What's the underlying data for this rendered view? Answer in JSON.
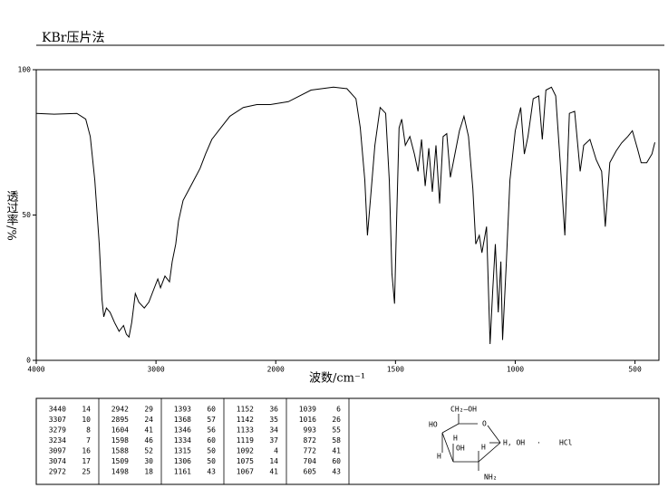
{
  "chart_data": {
    "type": "line",
    "title": "KBr压片法",
    "x_label": "波数/cm⁻¹",
    "y_label": "透过率/%",
    "color": "#000000",
    "xlim": [
      4000,
      400
    ],
    "xticks": [
      4000,
      3000,
      2000,
      1500,
      1000,
      500
    ],
    "ylim": [
      0,
      100
    ],
    "yticks": [
      0,
      50,
      100
    ],
    "x": [
      4000,
      3850,
      3662,
      3587,
      3549,
      3511,
      3474,
      3451,
      3436,
      3414,
      3383,
      3346,
      3308,
      3271,
      3248,
      3226,
      3203,
      3173,
      3143,
      3098,
      3060,
      3023,
      2985,
      2962,
      2925,
      2887,
      2865,
      2835,
      2812,
      2774,
      2722,
      2684,
      2632,
      2586,
      2534,
      2459,
      2383,
      2271,
      2158,
      2045,
      1947,
      1853,
      1759,
      1703,
      1665,
      1647,
      1628,
      1617,
      1602,
      1586,
      1564,
      1541,
      1526,
      1515,
      1504,
      1496,
      1485,
      1474,
      1459,
      1440,
      1421,
      1406,
      1391,
      1376,
      1361,
      1346,
      1331,
      1316,
      1301,
      1286,
      1271,
      1252,
      1233,
      1214,
      1195,
      1177,
      1165,
      1150,
      1139,
      1120,
      1105,
      1094,
      1083,
      1071,
      1060,
      1053,
      1037,
      1022,
      1000,
      977,
      962,
      947,
      925,
      902,
      887,
      872,
      849,
      831,
      812,
      793,
      774,
      752,
      729,
      714,
      688,
      662,
      639,
      624,
      605,
      579,
      556,
      530,
      511,
      489,
      474,
      451,
      429,
      417
    ],
    "values": [
      85,
      84.7,
      85,
      83,
      77,
      62,
      40,
      21,
      15,
      18,
      16.5,
      13,
      10,
      12,
      9,
      8,
      13,
      23,
      20,
      18,
      20,
      24,
      28,
      25,
      29,
      27,
      34,
      40,
      48,
      55,
      59,
      62,
      66,
      71,
      76,
      80,
      84,
      87,
      88,
      88,
      89,
      93,
      94,
      93.5,
      90,
      80,
      62,
      43,
      58,
      74,
      87,
      85,
      62,
      30,
      19.5,
      46,
      80,
      83,
      74,
      77,
      71,
      65,
      76,
      60,
      73,
      58,
      74,
      54,
      77,
      78,
      63,
      71,
      79,
      84,
      77,
      59,
      40,
      43,
      37,
      46,
      5.6,
      24,
      40,
      16.5,
      34,
      7,
      34,
      62,
      79,
      87,
      71,
      77,
      90,
      91,
      76,
      93,
      94,
      91,
      68,
      43,
      85,
      85.7,
      65,
      74,
      76,
      69,
      65,
      46,
      68,
      72,
      74.8,
      77,
      79,
      72.6,
      68,
      68,
      71,
      75
    ]
  },
  "peak_table": {
    "columns": [
      [
        [
          3440,
          14
        ],
        [
          3307,
          10
        ],
        [
          3279,
          8
        ],
        [
          3234,
          7
        ],
        [
          3097,
          16
        ],
        [
          3074,
          17
        ],
        [
          2972,
          25
        ]
      ],
      [
        [
          2942,
          29
        ],
        [
          2895,
          24
        ],
        [
          1604,
          41
        ],
        [
          1598,
          46
        ],
        [
          1588,
          52
        ],
        [
          1509,
          30
        ],
        [
          1498,
          18
        ]
      ],
      [
        [
          1393,
          60
        ],
        [
          1368,
          57
        ],
        [
          1346,
          56
        ],
        [
          1334,
          60
        ],
        [
          1315,
          50
        ],
        [
          1306,
          50
        ],
        [
          1161,
          43
        ]
      ],
      [
        [
          1152,
          36
        ],
        [
          1142,
          35
        ],
        [
          1133,
          34
        ],
        [
          1119,
          37
        ],
        [
          1092,
          4
        ],
        [
          1075,
          14
        ],
        [
          1067,
          41
        ]
      ],
      [
        [
          1039,
          6
        ],
        [
          1016,
          26
        ],
        [
          993,
          55
        ],
        [
          872,
          58
        ],
        [
          772,
          41
        ],
        [
          704,
          60
        ],
        [
          605,
          43
        ]
      ]
    ]
  },
  "structure": {
    "labels": [
      "CH₂—OH",
      "HO",
      "O",
      "H",
      "OH",
      "H, OH",
      "·",
      "HCl",
      "H",
      "H",
      "NH₂"
    ]
  }
}
